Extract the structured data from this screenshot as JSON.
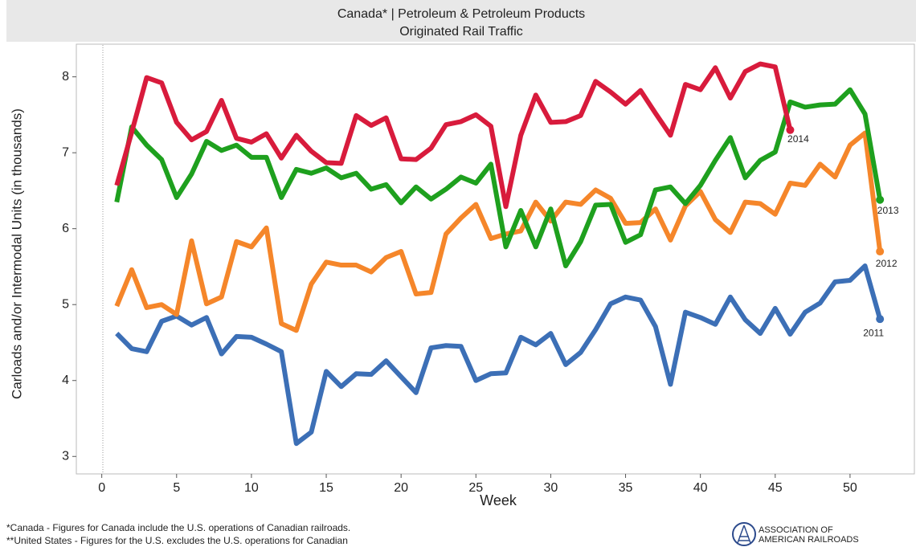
{
  "chart_data": {
    "type": "line",
    "title": "Canada* | Petroleum & Petroleum Products",
    "subtitle": "Originated Rail Traffic",
    "x_label": "Week",
    "y_label": "Carloads and/or Intermodal Units (in thousands)",
    "x": [
      1,
      2,
      3,
      4,
      5,
      6,
      7,
      8,
      9,
      10,
      11,
      12,
      13,
      14,
      15,
      16,
      17,
      18,
      19,
      20,
      21,
      22,
      23,
      24,
      25,
      26,
      27,
      28,
      29,
      30,
      31,
      32,
      33,
      34,
      35,
      36,
      37,
      38,
      39,
      40,
      41,
      42,
      43,
      44,
      45,
      46,
      47,
      48,
      49,
      50,
      51,
      52
    ],
    "xlim": [
      -1.7,
      54.3
    ],
    "xticks": [
      0,
      5,
      10,
      15,
      20,
      25,
      30,
      35,
      40,
      45,
      50
    ],
    "ylim": [
      2.77,
      8.43
    ],
    "yticks": [
      3,
      4,
      5,
      6,
      7,
      8
    ],
    "series": [
      {
        "name": "2011",
        "color": "#3c6fb6",
        "values": [
          4.62,
          4.42,
          4.38,
          4.78,
          4.85,
          4.73,
          4.83,
          4.35,
          4.58,
          4.57,
          4.48,
          4.38,
          3.17,
          3.32,
          4.12,
          3.92,
          4.09,
          4.08,
          4.26,
          4.05,
          3.84,
          4.43,
          4.46,
          4.45,
          4.0,
          4.09,
          4.1,
          4.57,
          4.47,
          4.62,
          4.21,
          4.37,
          4.67,
          5.01,
          5.1,
          5.06,
          4.71,
          3.95,
          4.9,
          4.83,
          4.74,
          5.1,
          4.8,
          4.62,
          4.95,
          4.61,
          4.9,
          5.02,
          5.3,
          5.32,
          5.51,
          4.81
        ]
      },
      {
        "name": "2012",
        "color": "#f5862a",
        "values": [
          4.98,
          5.46,
          4.96,
          5.0,
          4.87,
          5.84,
          5.01,
          5.1,
          5.83,
          5.76,
          6.01,
          4.75,
          4.66,
          5.27,
          5.56,
          5.52,
          5.52,
          5.43,
          5.62,
          5.7,
          5.14,
          5.16,
          5.93,
          6.14,
          6.32,
          5.87,
          5.93,
          5.97,
          6.35,
          6.1,
          6.35,
          6.32,
          6.51,
          6.4,
          6.07,
          6.08,
          6.26,
          5.85,
          6.3,
          6.49,
          6.12,
          5.95,
          6.35,
          6.33,
          6.19,
          6.6,
          6.57,
          6.85,
          6.68,
          7.1,
          7.26,
          5.7
        ]
      },
      {
        "name": "2013",
        "color": "#1ea01e",
        "values": [
          6.35,
          7.34,
          7.1,
          6.91,
          6.41,
          6.72,
          7.15,
          7.03,
          7.1,
          6.94,
          6.94,
          6.41,
          6.78,
          6.73,
          6.8,
          6.67,
          6.73,
          6.52,
          6.58,
          6.34,
          6.55,
          6.39,
          6.52,
          6.68,
          6.6,
          6.85,
          5.76,
          6.24,
          5.76,
          6.26,
          5.51,
          5.83,
          6.31,
          6.32,
          5.82,
          5.92,
          6.51,
          6.55,
          6.33,
          6.57,
          6.9,
          7.2,
          6.67,
          6.9,
          7.01,
          7.67,
          7.6,
          7.63,
          7.64,
          7.83,
          7.51,
          6.38
        ]
      },
      {
        "name": "2014",
        "color": "#d81b3c",
        "values": [
          6.57,
          7.27,
          7.99,
          7.92,
          7.4,
          7.17,
          7.28,
          7.69,
          7.19,
          7.14,
          7.25,
          6.93,
          7.23,
          7.02,
          6.87,
          6.86,
          7.49,
          7.36,
          7.46,
          6.92,
          6.91,
          7.06,
          7.37,
          7.41,
          7.5,
          7.35,
          6.29,
          7.23,
          7.76,
          7.4,
          7.41,
          7.49,
          7.94,
          7.8,
          7.64,
          7.82,
          7.52,
          7.23,
          7.9,
          7.83,
          8.12,
          7.72,
          8.07,
          8.17,
          8.13,
          7.3,
          null,
          null,
          null,
          null,
          null,
          null
        ]
      }
    ],
    "footnotes": [
      "*Canada - Figures for Canada include the U.S. operations of Canadian railroads.",
      "**United States - Figures for the U.S. excludes the U.S. operations for Canadian"
    ],
    "logo": [
      "ASSOCIATION OF",
      "AMERICAN RAILROADS"
    ]
  }
}
